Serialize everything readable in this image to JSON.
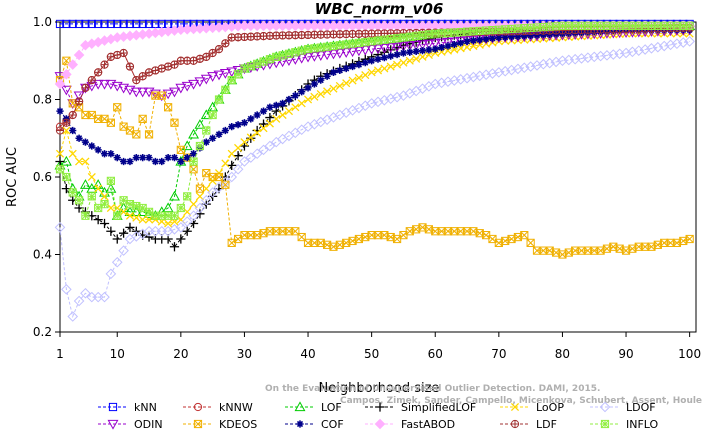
{
  "chart_data": {
    "type": "line",
    "title": "WBC_norm_v06",
    "xlabel": "Neighborhood size",
    "ylabel": "ROC AUC",
    "xlim": [
      1,
      101
    ],
    "ylim": [
      0.2,
      1.0
    ],
    "xticks": [
      1,
      10,
      20,
      30,
      40,
      50,
      60,
      70,
      80,
      90,
      100
    ],
    "yticks": [
      0.2,
      0.4,
      0.6,
      0.8,
      1.0
    ],
    "ytick_labels": [
      "0.2",
      "0.4",
      "0.6",
      "0.8",
      "1.0"
    ],
    "grid": false,
    "legend_position": "bottom",
    "series": [
      {
        "name": "kNN",
        "color": "#0000ff",
        "marker": "square",
        "x": [
          1,
          5,
          10,
          20,
          30,
          50,
          70,
          100
        ],
        "y": [
          0.995,
          0.995,
          0.995,
          0.995,
          0.995,
          0.995,
          0.995,
          0.995
        ]
      },
      {
        "name": "kNNW",
        "color": "#c03030",
        "marker": "circle",
        "x": [
          1,
          3,
          5,
          7,
          9,
          10,
          11,
          13,
          15,
          17,
          19,
          20,
          22,
          24,
          26,
          28,
          35,
          50,
          70,
          100
        ],
        "y": [
          0.73,
          0.76,
          0.83,
          0.87,
          0.91,
          0.915,
          0.92,
          0.85,
          0.87,
          0.88,
          0.89,
          0.9,
          0.9,
          0.91,
          0.93,
          0.96,
          0.965,
          0.97,
          0.975,
          0.985
        ]
      },
      {
        "name": "LOF",
        "color": "#00cc00",
        "marker": "triangle",
        "x": [
          1,
          2,
          3,
          4,
          5,
          6,
          7,
          8,
          9,
          10,
          11,
          12,
          14,
          16,
          18,
          19,
          20,
          21,
          22,
          24,
          26,
          28,
          30,
          35,
          40,
          50,
          60,
          70,
          80,
          90,
          100
        ],
        "y": [
          0.63,
          0.64,
          0.57,
          0.55,
          0.58,
          0.57,
          0.58,
          0.56,
          0.57,
          0.5,
          0.52,
          0.51,
          0.51,
          0.5,
          0.52,
          0.55,
          0.64,
          0.68,
          0.71,
          0.76,
          0.8,
          0.85,
          0.88,
          0.91,
          0.93,
          0.95,
          0.97,
          0.98,
          0.99,
          0.99,
          0.99
        ]
      },
      {
        "name": "SimplifiedLOF",
        "color": "#000000",
        "marker": "plus",
        "x": [
          1,
          2,
          3,
          4,
          5,
          6,
          7,
          8,
          9,
          10,
          12,
          14,
          16,
          18,
          19,
          20,
          21,
          22,
          24,
          26,
          28,
          30,
          32,
          35,
          38,
          40,
          42,
          45,
          50,
          55,
          60,
          65,
          70,
          75,
          80,
          90,
          100
        ],
        "y": [
          0.64,
          0.57,
          0.54,
          0.52,
          0.51,
          0.5,
          0.49,
          0.48,
          0.46,
          0.44,
          0.47,
          0.45,
          0.44,
          0.44,
          0.42,
          0.44,
          0.46,
          0.48,
          0.53,
          0.57,
          0.63,
          0.68,
          0.72,
          0.77,
          0.81,
          0.84,
          0.86,
          0.88,
          0.91,
          0.94,
          0.96,
          0.97,
          0.98,
          0.98,
          0.98,
          0.98,
          0.98
        ]
      },
      {
        "name": "LoOP",
        "color": "#ffd700",
        "marker": "x",
        "x": [
          1,
          2,
          3,
          4,
          5,
          6,
          7,
          8,
          9,
          10,
          12,
          14,
          16,
          18,
          20,
          22,
          24,
          26,
          28,
          30,
          35,
          40,
          50,
          60,
          70,
          80,
          90,
          100
        ],
        "y": [
          0.66,
          0.72,
          0.66,
          0.64,
          0.64,
          0.6,
          0.57,
          0.55,
          0.52,
          0.52,
          0.5,
          0.49,
          0.49,
          0.48,
          0.49,
          0.53,
          0.57,
          0.61,
          0.66,
          0.69,
          0.75,
          0.8,
          0.87,
          0.92,
          0.95,
          0.96,
          0.97,
          0.97
        ]
      },
      {
        "name": "LDOF",
        "color": "#c0c0ff",
        "marker": "diamond",
        "x": [
          1,
          2,
          3,
          4,
          5,
          6,
          7,
          8,
          9,
          10,
          12,
          15,
          18,
          20,
          22,
          25,
          28,
          30,
          35,
          40,
          45,
          50,
          55,
          60,
          70,
          80,
          90,
          100
        ],
        "y": [
          0.47,
          0.31,
          0.24,
          0.28,
          0.3,
          0.29,
          0.29,
          0.29,
          0.35,
          0.38,
          0.44,
          0.46,
          0.46,
          0.47,
          0.5,
          0.56,
          0.6,
          0.64,
          0.69,
          0.73,
          0.76,
          0.79,
          0.81,
          0.84,
          0.87,
          0.9,
          0.92,
          0.95
        ]
      },
      {
        "name": "ODIN",
        "color": "#9900cc",
        "marker": "triangle-down",
        "x": [
          1,
          3,
          5,
          7,
          9,
          11,
          13,
          15,
          17,
          19,
          20,
          22,
          25,
          30,
          40,
          50,
          70,
          100
        ],
        "y": [
          0.86,
          0.79,
          0.83,
          0.84,
          0.84,
          0.83,
          0.82,
          0.82,
          0.81,
          0.82,
          0.83,
          0.84,
          0.86,
          0.88,
          0.91,
          0.93,
          0.96,
          0.98
        ]
      },
      {
        "name": "KDEOS",
        "color": "#f0b000",
        "marker": "square-x",
        "x": [
          1,
          2,
          3,
          4,
          5,
          6,
          7,
          8,
          9,
          10,
          11,
          12,
          13,
          14,
          15,
          16,
          17,
          18,
          19,
          20,
          21,
          22,
          23,
          24,
          25,
          26,
          27,
          28,
          30,
          32,
          34,
          36,
          38,
          40,
          42,
          44,
          46,
          48,
          50,
          52,
          54,
          56,
          58,
          60,
          62,
          64,
          66,
          68,
          70,
          72,
          74,
          76,
          78,
          80,
          82,
          84,
          86,
          88,
          90,
          92,
          94,
          96,
          98,
          100
        ],
        "y": [
          0.85,
          0.9,
          0.79,
          0.78,
          0.76,
          0.76,
          0.75,
          0.75,
          0.74,
          0.78,
          0.73,
          0.72,
          0.71,
          0.75,
          0.71,
          0.81,
          0.81,
          0.78,
          0.74,
          0.67,
          0.65,
          0.62,
          0.57,
          0.61,
          0.6,
          0.6,
          0.58,
          0.43,
          0.45,
          0.45,
          0.46,
          0.46,
          0.46,
          0.43,
          0.43,
          0.42,
          0.43,
          0.44,
          0.45,
          0.45,
          0.44,
          0.46,
          0.47,
          0.46,
          0.46,
          0.46,
          0.46,
          0.45,
          0.43,
          0.44,
          0.45,
          0.41,
          0.41,
          0.4,
          0.41,
          0.41,
          0.41,
          0.42,
          0.41,
          0.42,
          0.42,
          0.43,
          0.43,
          0.44
        ]
      },
      {
        "name": "COF",
        "color": "#00008b",
        "marker": "star",
        "x": [
          1,
          2,
          3,
          4,
          5,
          6,
          7,
          8,
          9,
          10,
          11,
          12,
          13,
          14,
          15,
          16,
          17,
          18,
          19,
          20,
          21,
          22,
          24,
          26,
          28,
          30,
          32,
          34,
          36,
          38,
          40,
          42,
          44,
          46,
          48,
          50,
          55,
          60,
          65,
          70,
          80,
          90,
          100
        ],
        "y": [
          0.77,
          0.75,
          0.72,
          0.7,
          0.69,
          0.68,
          0.67,
          0.66,
          0.66,
          0.65,
          0.64,
          0.64,
          0.65,
          0.65,
          0.65,
          0.64,
          0.64,
          0.65,
          0.65,
          0.64,
          0.65,
          0.66,
          0.69,
          0.71,
          0.73,
          0.74,
          0.76,
          0.78,
          0.79,
          0.81,
          0.83,
          0.85,
          0.87,
          0.88,
          0.89,
          0.9,
          0.92,
          0.93,
          0.95,
          0.96,
          0.97,
          0.98,
          0.98
        ]
      },
      {
        "name": "FastABOD",
        "color": "#ffb0ff",
        "marker": "diamond-filled",
        "x": [
          1,
          5,
          10,
          15,
          20,
          25,
          30,
          40,
          50,
          70,
          100
        ],
        "y": [
          0.84,
          0.94,
          0.96,
          0.97,
          0.98,
          0.985,
          0.99,
          0.99,
          0.99,
          0.99,
          0.99
        ]
      },
      {
        "name": "LDF",
        "color": "#a03030",
        "marker": "circle-plus",
        "x": [
          1,
          3,
          5,
          7,
          9,
          10,
          11,
          13,
          15,
          17,
          19,
          20,
          22,
          24,
          26,
          28,
          35,
          50,
          70,
          100
        ],
        "y": [
          0.72,
          0.76,
          0.83,
          0.87,
          0.91,
          0.915,
          0.92,
          0.85,
          0.87,
          0.88,
          0.89,
          0.9,
          0.9,
          0.91,
          0.93,
          0.96,
          0.965,
          0.97,
          0.975,
          0.985
        ]
      },
      {
        "name": "INFLO",
        "color": "#90ee40",
        "marker": "square-cross",
        "x": [
          1,
          2,
          3,
          4,
          5,
          6,
          7,
          8,
          9,
          10,
          11,
          12,
          14,
          16,
          18,
          19,
          20,
          21,
          22,
          24,
          26,
          28,
          30,
          35,
          40,
          50,
          60,
          70,
          80,
          90,
          100
        ],
        "y": [
          0.62,
          0.6,
          0.56,
          0.54,
          0.5,
          0.55,
          0.52,
          0.53,
          0.59,
          0.5,
          0.54,
          0.53,
          0.52,
          0.5,
          0.5,
          0.5,
          0.52,
          0.55,
          0.64,
          0.72,
          0.8,
          0.85,
          0.88,
          0.91,
          0.93,
          0.95,
          0.97,
          0.98,
          0.99,
          0.99,
          0.99
        ]
      }
    ],
    "watermark": "Campos, Zimek, Sander, Campello, Micenkova, Schubert, Assent, Houle: On the Evaluation of Unsupervised Outlier Detection. DAMI, 2015."
  },
  "legend": {
    "rows": [
      [
        {
          "label": "kNN",
          "series": 0
        },
        {
          "label": "kNNW",
          "series": 1
        },
        {
          "label": "LOF",
          "series": 2
        },
        {
          "label": "SimplifiedLOF",
          "series": 3
        },
        {
          "label": "LoOP",
          "series": 4
        },
        {
          "label": "LDOF",
          "series": 5
        }
      ],
      [
        {
          "label": "ODIN",
          "series": 6
        },
        {
          "label": "KDEOS",
          "series": 7
        },
        {
          "label": "COF",
          "series": 8
        },
        {
          "label": "FastABOD",
          "series": 9
        },
        {
          "label": "LDF",
          "series": 10
        },
        {
          "label": "INFLO",
          "series": 11
        }
      ]
    ]
  }
}
